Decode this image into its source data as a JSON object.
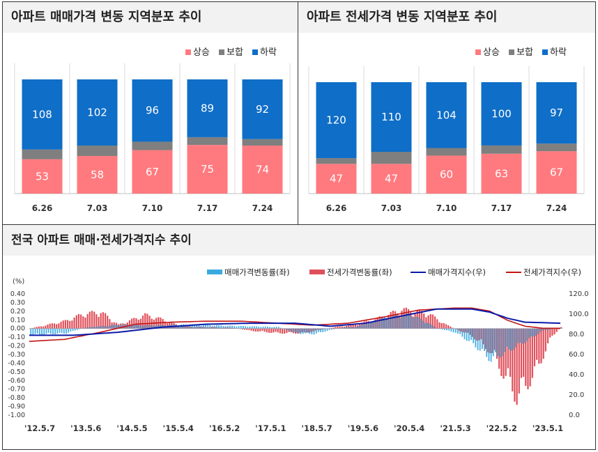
{
  "chart_data": [
    {
      "type": "bar",
      "stacked": true,
      "title": "아파트 매매가격 변동 지역분포 추이",
      "categories": [
        "6.26",
        "7.03",
        "7.10",
        "7.17",
        "7.24"
      ],
      "series": [
        {
          "name": "상승",
          "values": [
            53,
            58,
            67,
            75,
            74
          ]
        },
        {
          "name": "보합",
          "values": [
            15,
            16,
            13,
            12,
            10
          ]
        },
        {
          "name": "하락",
          "values": [
            108,
            102,
            96,
            89,
            92
          ]
        }
      ]
    },
    {
      "type": "bar",
      "stacked": true,
      "title": "아파트 전세가격 변동 지역분포 추이",
      "categories": [
        "6.26",
        "7.03",
        "7.10",
        "7.17",
        "7.24"
      ],
      "series": [
        {
          "name": "상승",
          "values": [
            47,
            47,
            60,
            63,
            67
          ]
        },
        {
          "name": "보합",
          "values": [
            9,
            19,
            12,
            13,
            12
          ]
        },
        {
          "name": "하락",
          "values": [
            120,
            110,
            104,
            100,
            97
          ]
        }
      ]
    },
    {
      "type": "bar+line",
      "title": "전국 아파트 매매·전세가격지수 추이",
      "ylabel_left": "(%)",
      "ylim_left": [
        -1.0,
        0.4
      ],
      "ylim_right": [
        0,
        120
      ],
      "left_ticks": [
        "0.40",
        "0.30",
        "0.20",
        "0.10",
        "0.00",
        "-0.10",
        "-0.20",
        "-0.30",
        "-0.40",
        "-0.50",
        "-0.60",
        "-0.70",
        "-0.80",
        "-0.90",
        "-1.00"
      ],
      "right_ticks": [
        "120.0",
        "100.0",
        "80.0",
        "60.0",
        "40.0",
        "20.0",
        "0.0"
      ],
      "x_ticks": [
        "'12.5.7",
        "'13.5.6",
        "'14.5.5",
        "'15.5.4",
        "'16.5.2",
        "'17.5.1",
        "'18.5.7",
        "'19.5.6",
        "'20.5.4",
        "'21.5.3",
        "'22.5.2",
        "'23.5.1"
      ],
      "legend": [
        "매매가격변동률(좌)",
        "전세가격변동률(좌)",
        "매매가격지수(우)",
        "전세가격지수(우)"
      ],
      "series_anchors": {
        "sale_rate": [
          [
            0,
            -0.08
          ],
          [
            8,
            -0.06
          ],
          [
            12,
            0.01
          ],
          [
            20,
            0.05
          ],
          [
            28,
            0.04
          ],
          [
            34,
            0.05
          ],
          [
            42,
            0.04
          ],
          [
            48,
            0.03
          ],
          [
            56,
            0.02
          ],
          [
            60,
            -0.06
          ],
          [
            64,
            -0.07
          ],
          [
            70,
            0.01
          ],
          [
            74,
            0.03
          ],
          [
            80,
            0.14
          ],
          [
            86,
            0.18
          ],
          [
            92,
            0.0
          ],
          [
            96,
            -0.05
          ],
          [
            100,
            -0.2
          ],
          [
            104,
            -0.4
          ],
          [
            110,
            -0.22
          ],
          [
            116,
            -0.02
          ],
          [
            120,
            0.01
          ]
        ],
        "jeonse_rate": [
          [
            0,
            0.0
          ],
          [
            8,
            0.1
          ],
          [
            12,
            0.19
          ],
          [
            16,
            0.22
          ],
          [
            20,
            0.05
          ],
          [
            26,
            0.18
          ],
          [
            30,
            0.12
          ],
          [
            34,
            0.03
          ],
          [
            40,
            0.02
          ],
          [
            46,
            0.01
          ],
          [
            50,
            -0.03
          ],
          [
            56,
            -0.06
          ],
          [
            62,
            -0.06
          ],
          [
            68,
            0.01
          ],
          [
            74,
            0.06
          ],
          [
            78,
            0.12
          ],
          [
            84,
            0.25
          ],
          [
            90,
            0.2
          ],
          [
            94,
            0.05
          ],
          [
            100,
            -0.1
          ],
          [
            104,
            -0.3
          ],
          [
            110,
            -0.9
          ],
          [
            114,
            -0.6
          ],
          [
            118,
            -0.1
          ],
          [
            120,
            0.02
          ]
        ],
        "sale_index": [
          [
            0,
            79
          ],
          [
            10,
            79
          ],
          [
            20,
            82
          ],
          [
            30,
            87
          ],
          [
            40,
            90
          ],
          [
            50,
            91
          ],
          [
            60,
            91
          ],
          [
            68,
            88
          ],
          [
            76,
            91
          ],
          [
            84,
            98
          ],
          [
            92,
            105
          ],
          [
            100,
            105
          ],
          [
            104,
            102
          ],
          [
            108,
            96
          ],
          [
            112,
            92
          ],
          [
            120,
            91
          ]
        ],
        "jeonse_index": [
          [
            0,
            73
          ],
          [
            8,
            75
          ],
          [
            16,
            82
          ],
          [
            24,
            90
          ],
          [
            32,
            92
          ],
          [
            40,
            93
          ],
          [
            48,
            93
          ],
          [
            56,
            91
          ],
          [
            64,
            89
          ],
          [
            72,
            91
          ],
          [
            80,
            97
          ],
          [
            88,
            104
          ],
          [
            96,
            106
          ],
          [
            100,
            106
          ],
          [
            104,
            103
          ],
          [
            108,
            94
          ],
          [
            112,
            88
          ],
          [
            116,
            86
          ],
          [
            120,
            86
          ]
        ]
      }
    }
  ],
  "colors": {
    "rise": "#ff7a7f",
    "flat": "#7f7f7f",
    "fall": "#0f6ec7",
    "sale_bar": "#3ba9e0",
    "jeonse_bar": "#e0505a",
    "sale_line": "#0a1aa8",
    "jeonse_line": "#c21414"
  }
}
